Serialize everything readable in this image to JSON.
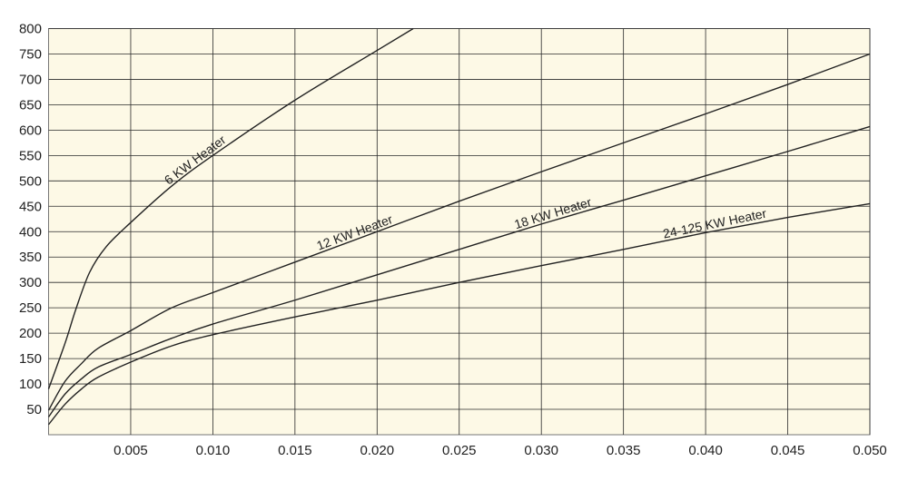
{
  "chart_data": {
    "type": "line",
    "xlim": [
      0,
      0.05
    ],
    "ylim": [
      0,
      800
    ],
    "grid": true,
    "x_ticks": [
      "0.005",
      "0.010",
      "0.015",
      "0.020",
      "0.025",
      "0.030",
      "0.035",
      "0.040",
      "0.045",
      "0.050"
    ],
    "y_ticks": [
      "50",
      "100",
      "150",
      "200",
      "250",
      "300",
      "350",
      "400",
      "450",
      "500",
      "550",
      "600",
      "650",
      "700",
      "750",
      "800"
    ],
    "colors": {
      "plot_background": "#fdf9e6",
      "grid": "#2a2a2a",
      "line": "#222222"
    },
    "series": [
      {
        "name": "6 KW Heater",
        "x": [
          0,
          0.001,
          0.00167,
          0.0025,
          0.0035,
          0.005,
          0.0075,
          0.01,
          0.015,
          0.02,
          0.0222
        ],
        "y": [
          90,
          180,
          248,
          320,
          370,
          418,
          490,
          550,
          659,
          757,
          800
        ]
      },
      {
        "name": "12 KW Heater",
        "x": [
          0,
          0.001,
          0.002,
          0.003,
          0.005,
          0.0075,
          0.01,
          0.015,
          0.02,
          0.025,
          0.03,
          0.035,
          0.04,
          0.045,
          0.05
        ],
        "y": [
          48,
          105,
          140,
          170,
          205,
          250,
          280,
          340,
          400,
          460,
          518,
          575,
          632,
          690,
          750
        ]
      },
      {
        "name": "18 KW Heater",
        "x": [
          0,
          0.001,
          0.002,
          0.003,
          0.005,
          0.0075,
          0.01,
          0.015,
          0.02,
          0.025,
          0.03,
          0.035,
          0.04,
          0.045,
          0.05
        ],
        "y": [
          35,
          80,
          110,
          133,
          158,
          190,
          218,
          265,
          315,
          365,
          415,
          462,
          510,
          558,
          607
        ]
      },
      {
        "name": "24-125 KW Heater",
        "x": [
          0,
          0.001,
          0.002,
          0.003,
          0.005,
          0.0075,
          0.01,
          0.015,
          0.02,
          0.025,
          0.03,
          0.035,
          0.04,
          0.045,
          0.05
        ],
        "y": [
          20,
          60,
          90,
          113,
          143,
          175,
          197,
          232,
          265,
          300,
          333,
          365,
          398,
          428,
          455
        ]
      }
    ],
    "label_positions": [
      0.0074,
      0.0165,
      0.0285,
      0.0375
    ]
  }
}
